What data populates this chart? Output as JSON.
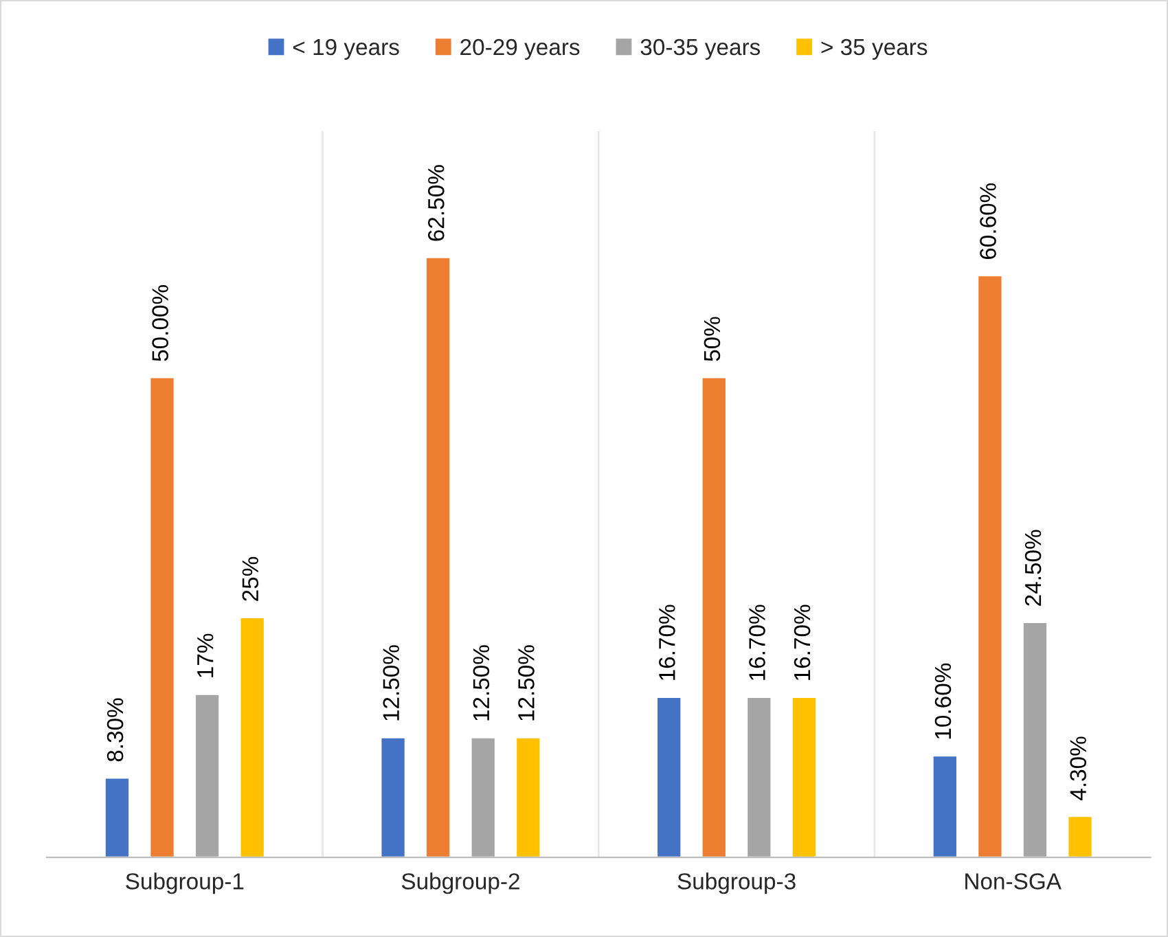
{
  "chart_data": {
    "type": "bar",
    "categories": [
      "Subgroup-1",
      "Subgroup-2",
      "Subgroup-3",
      "Non-SGA"
    ],
    "series": [
      {
        "name": "< 19 years",
        "color": "#4472c4",
        "values": [
          8.3,
          12.5,
          16.7,
          10.6
        ],
        "value_labels": [
          "8.30%",
          "12.50%",
          "16.70%",
          "10.60%"
        ]
      },
      {
        "name": "20-29 years",
        "color": "#ed7d31",
        "values": [
          50,
          62.5,
          50,
          60.6
        ],
        "value_labels": [
          "50.00%",
          "62.50%",
          "50%",
          "60.60%"
        ]
      },
      {
        "name": "30-35 years",
        "color": "#a5a5a5",
        "values": [
          17,
          12.5,
          16.7,
          24.5
        ],
        "value_labels": [
          "17%",
          "12.50%",
          "16.70%",
          "24.50%"
        ]
      },
      {
        "name": "> 35 years",
        "color": "#ffc000",
        "values": [
          25,
          12.5,
          16.7,
          4.3
        ],
        "value_labels": [
          "25%",
          "12.50%",
          "16.70%",
          "4.30%"
        ]
      }
    ],
    "grid": "x",
    "legend": "top",
    "tick_labels": "x"
  }
}
